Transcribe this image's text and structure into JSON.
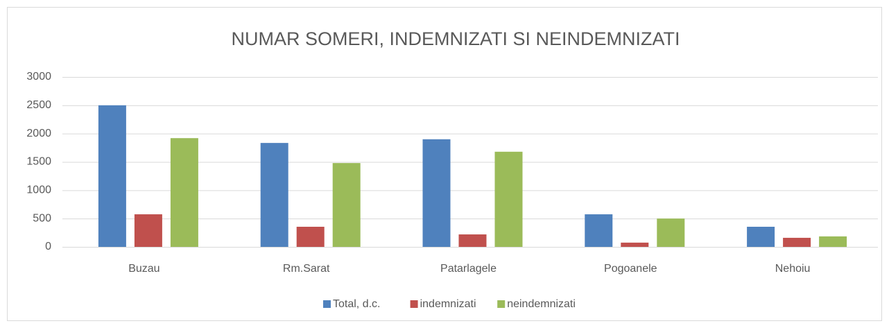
{
  "chart_data": {
    "type": "bar",
    "title": "NUMAR SOMERI, INDEMNIZATI SI NEINDEMNIZATI",
    "categories": [
      "Buzau",
      "Rm.Sarat",
      "Patarlagele",
      "Pogoanele",
      "Nehoiu"
    ],
    "series": [
      {
        "name": "Total, d.c.",
        "color": "#4f81bd",
        "values": [
          2500,
          1835,
          1900,
          575,
          355
        ]
      },
      {
        "name": "indemnizati",
        "color": "#c0504d",
        "values": [
          575,
          355,
          220,
          75,
          160
        ]
      },
      {
        "name": "neindemnizati",
        "color": "#9bbb59",
        "values": [
          1920,
          1480,
          1680,
          500,
          185
        ]
      }
    ],
    "ylim": [
      0,
      3000
    ],
    "yticks": [
      0,
      500,
      1000,
      1500,
      2000,
      2500,
      3000
    ],
    "grid": true,
    "legend": "bottom"
  }
}
